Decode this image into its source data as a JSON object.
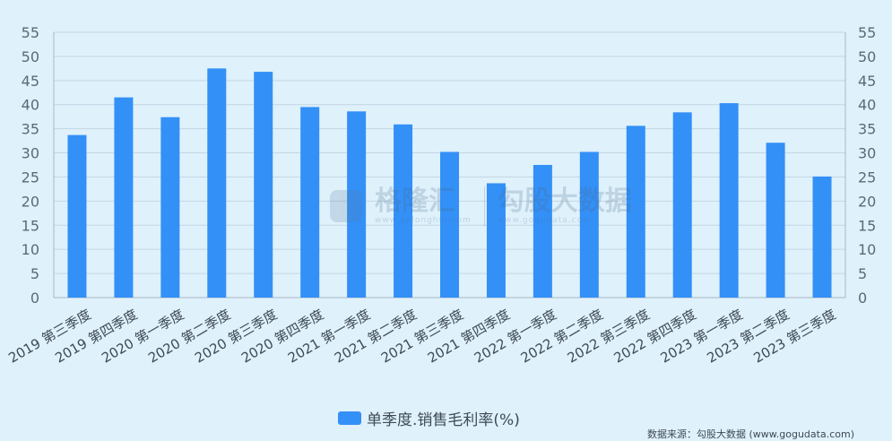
{
  "chart_data": {
    "type": "bar",
    "categories": [
      "2019 第三季度",
      "2019 第四季度",
      "2020 第一季度",
      "2020 第二季度",
      "2020 第三季度",
      "2020 第四季度",
      "2021 第一季度",
      "2021 第二季度",
      "2021 第三季度",
      "2021 第四季度",
      "2022 第一季度",
      "2022 第二季度",
      "2022 第三季度",
      "2022 第四季度",
      "2023 第一季度",
      "2023 第二季度",
      "2023 第三季度"
    ],
    "series": [
      {
        "name": "单季度.销售毛利率(%)",
        "values": [
          33.7,
          41.5,
          37.4,
          47.5,
          46.8,
          39.5,
          38.6,
          35.9,
          30.2,
          23.7,
          27.5,
          30.2,
          35.6,
          38.4,
          40.3,
          32.1,
          25.1
        ]
      }
    ],
    "ylim": [
      0,
      55
    ],
    "yticks": [
      0,
      5,
      10,
      15,
      20,
      25,
      30,
      35,
      40,
      45,
      50,
      55
    ],
    "grid": true,
    "legend_position": "bottom",
    "colors": {
      "bar": "#3390f7",
      "grid": "#c3d6e3",
      "background": "#dff1fb"
    }
  },
  "watermark": {
    "left_text": "格隆汇",
    "left_sub": "www.gelonghui.com",
    "right_text": "勾股大数据",
    "right_sub": "www.gogudata.com"
  },
  "source": "数据来源：勾股大数据 (www.gogudata.com)"
}
